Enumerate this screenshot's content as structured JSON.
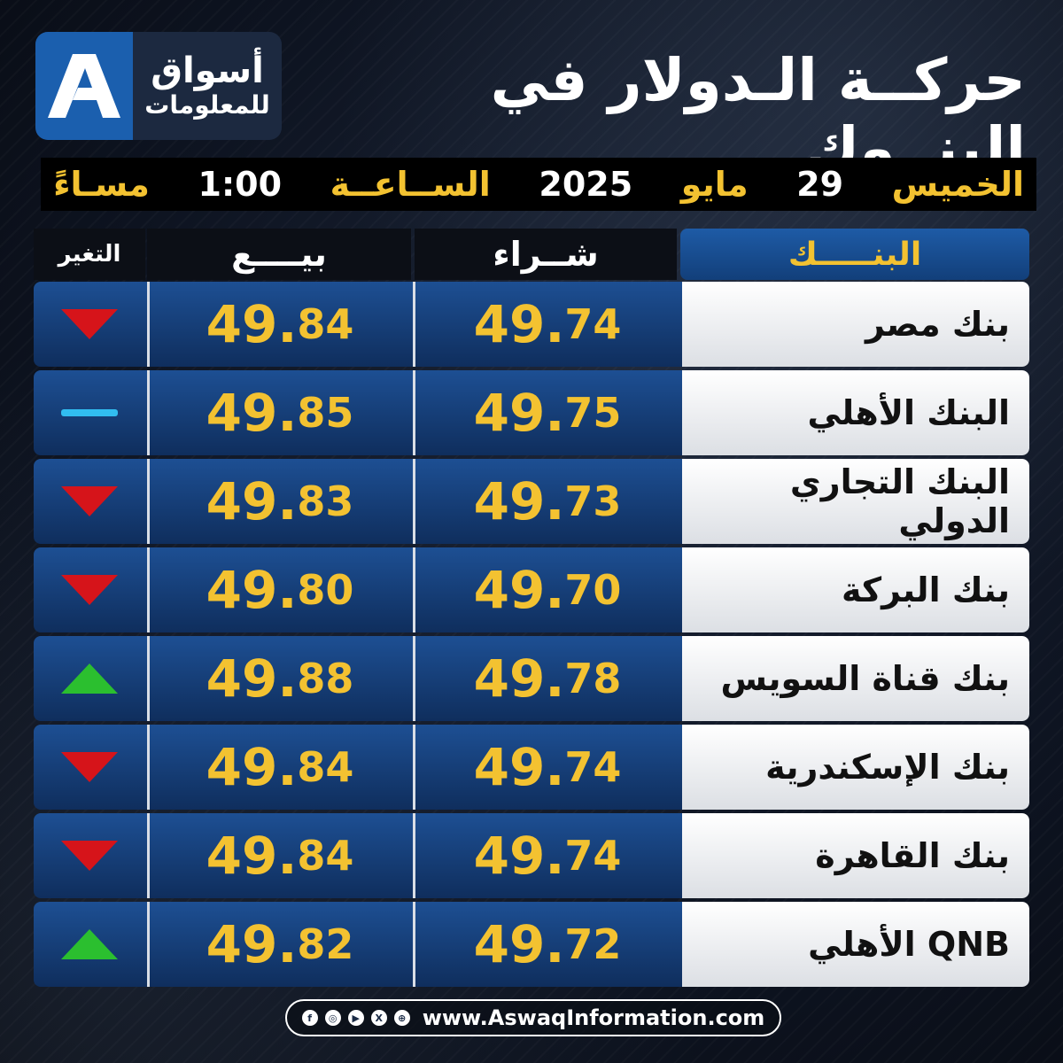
{
  "logo": {
    "line1": "أسواق",
    "line2": "للمعلومات",
    "mark": "A"
  },
  "title": "حركــة الـدولار في البنــوك",
  "datebar": {
    "day": "الخميس",
    "daynum": "29",
    "month": "مايو",
    "year": "2025",
    "time_label": "الســاعــة",
    "time": "1:00",
    "period": "مسـاءً"
  },
  "table": {
    "headers": {
      "bank": "البنـــــك",
      "buy": "شــراء",
      "sell": "بيــــع",
      "change": "التغير"
    },
    "rows": [
      {
        "bank": "بنك مصر",
        "buy_int": "49.",
        "buy_dec": "74",
        "sell_int": "49.",
        "sell_dec": "84",
        "change": "down"
      },
      {
        "bank": "البنك الأهلي",
        "buy_int": "49.",
        "buy_dec": "75",
        "sell_int": "49.",
        "sell_dec": "85",
        "change": "flat"
      },
      {
        "bank": "البنك التجاري الدولي",
        "buy_int": "49.",
        "buy_dec": "73",
        "sell_int": "49.",
        "sell_dec": "83",
        "change": "down"
      },
      {
        "bank": "بنك البركة",
        "buy_int": "49.",
        "buy_dec": "70",
        "sell_int": "49.",
        "sell_dec": "80",
        "change": "down"
      },
      {
        "bank": "بنك قناة السويس",
        "buy_int": "49.",
        "buy_dec": "78",
        "sell_int": "49.",
        "sell_dec": "88",
        "change": "up"
      },
      {
        "bank": "بنك الإسكندرية",
        "buy_int": "49.",
        "buy_dec": "74",
        "sell_int": "49.",
        "sell_dec": "84",
        "change": "down"
      },
      {
        "bank": "بنك القاهرة",
        "buy_int": "49.",
        "buy_dec": "74",
        "sell_int": "49.",
        "sell_dec": "84",
        "change": "down"
      },
      {
        "bank": "QNB الأهلي",
        "buy_int": "49.",
        "buy_dec": "72",
        "sell_int": "49.",
        "sell_dec": "82",
        "change": "up"
      }
    ]
  },
  "footer": {
    "url": "www.AswaqInformation.com",
    "icons": [
      "facebook-icon",
      "instagram-icon",
      "youtube-icon",
      "x-icon",
      "web-icon"
    ]
  },
  "colors": {
    "gold": "#f3c231",
    "blue": "#1d4f93",
    "down": "#d6141a",
    "up": "#2bbf2f",
    "flat": "#31bdf0"
  }
}
